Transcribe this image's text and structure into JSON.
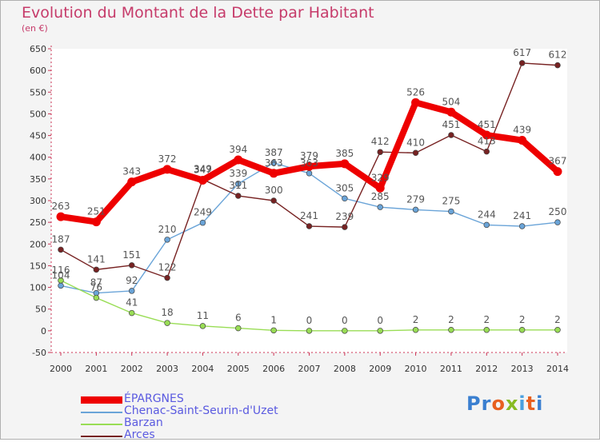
{
  "title": "Evolution du Montant de la Dette par Habitant",
  "unit": "(en €)",
  "logo": {
    "text": "Proxiti",
    "letters": [
      "P",
      "r",
      "o",
      "x",
      "i",
      "t",
      "i"
    ],
    "colors": [
      "#3a7fd0",
      "#3a7fd0",
      "#e86020",
      "#88bb22",
      "#4aa0e0",
      "#e86020",
      "#3a7fd0"
    ]
  },
  "chart_data": {
    "type": "line",
    "title": "Evolution du Montant de la Dette par Habitant",
    "ylabel": "(en €)",
    "xlabel": "",
    "x": [
      "2000",
      "2001",
      "2002",
      "2003",
      "2004",
      "2005",
      "2006",
      "2007",
      "2008",
      "2009",
      "2010",
      "2011",
      "2012",
      "2013",
      "2014"
    ],
    "ylim": [
      -50,
      650
    ],
    "yticks": [
      -50,
      0,
      50,
      100,
      150,
      200,
      250,
      300,
      350,
      400,
      450,
      500,
      550,
      600,
      650
    ],
    "grid": false,
    "legend_position": "bottom-left",
    "series": [
      {
        "name": "ÉPARGNES",
        "color": "#ee0000",
        "values": [
          263,
          251,
          343,
          372,
          347,
          394,
          363,
          379,
          385,
          329,
          526,
          504,
          451,
          439,
          367
        ]
      },
      {
        "name": "Chenac-Saint-Seurin-d'Uzet",
        "color": "#6aa4d8",
        "values": [
          104,
          87,
          92,
          210,
          249,
          339,
          387,
          363,
          305,
          285,
          279,
          275,
          244,
          241,
          250
        ]
      },
      {
        "name": "Barzan",
        "color": "#99dd55",
        "values": [
          116,
          76,
          41,
          18,
          11,
          6,
          1,
          0,
          0,
          0,
          2,
          2,
          2,
          2,
          2
        ]
      },
      {
        "name": "Arces",
        "color": "#772222",
        "values": [
          187,
          141,
          151,
          122,
          349,
          311,
          300,
          241,
          239,
          412,
          410,
          451,
          413,
          617,
          612
        ]
      }
    ]
  }
}
